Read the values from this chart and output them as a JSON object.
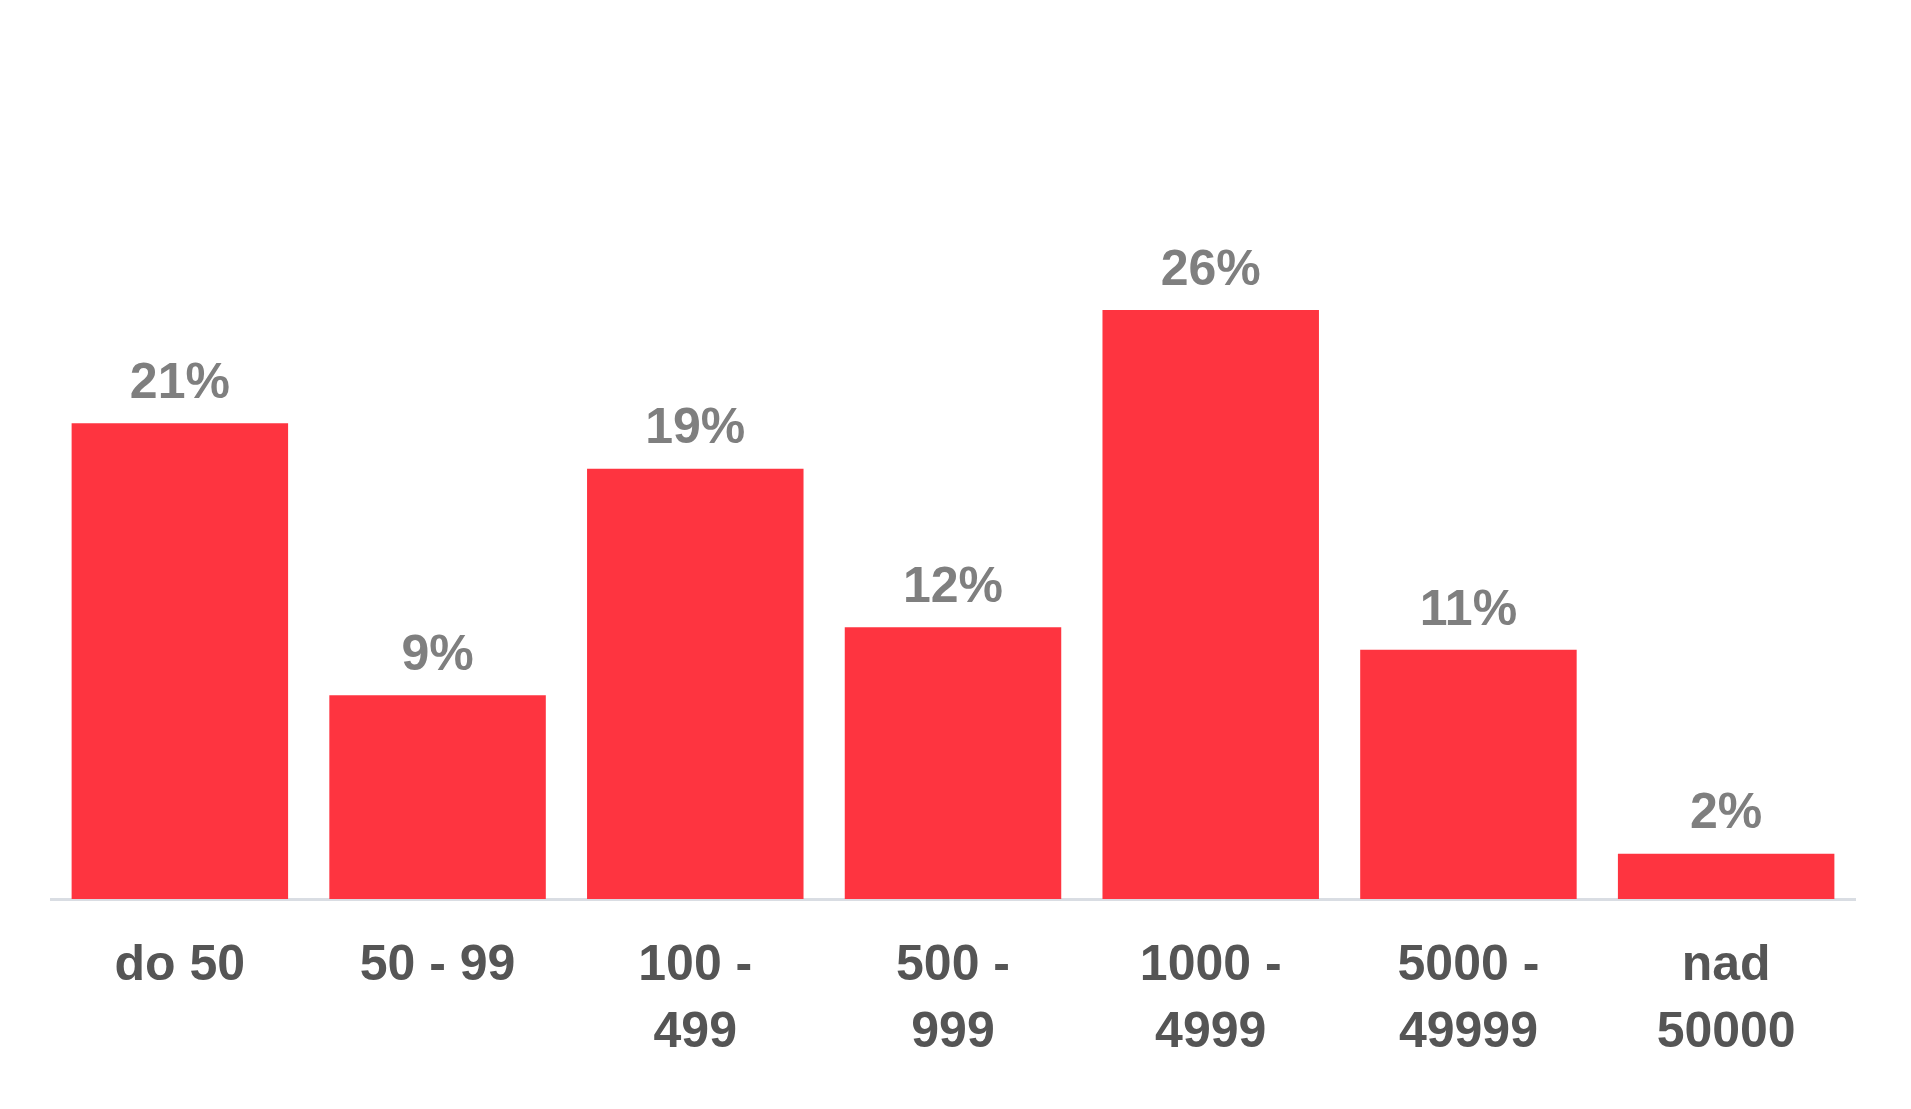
{
  "chart_data": {
    "type": "bar",
    "categories": [
      "do 50",
      "50 - 99",
      "100 - 499",
      "500 - 999",
      "1000 - 4999",
      "5000 - 49999",
      "nad 50000"
    ],
    "values": [
      21,
      9,
      19,
      12,
      26,
      11,
      2
    ],
    "value_labels": [
      "21%",
      "9%",
      "19%",
      "12%",
      "26%",
      "11%",
      "2%"
    ],
    "color": "#fe3440"
  }
}
